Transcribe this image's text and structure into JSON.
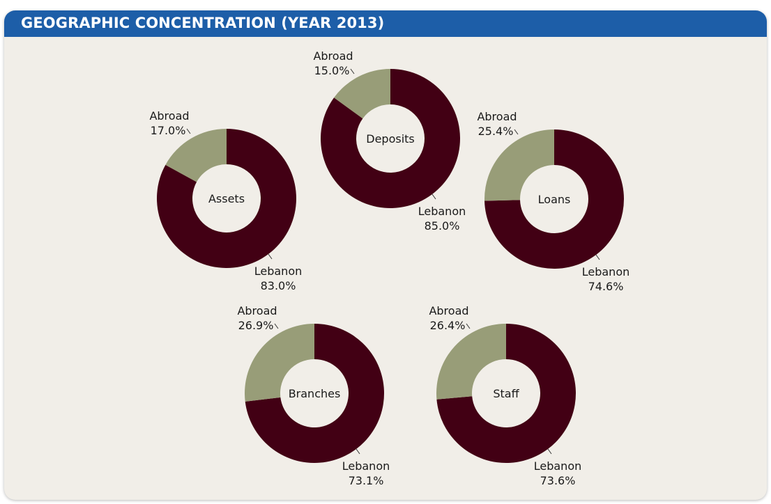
{
  "header": {
    "title": "GEOGRAPHIC CONCENTRATION (YEAR 2013)"
  },
  "colors": {
    "lebanon": "#420014",
    "abroad": "#989d78",
    "hole": "#f1eee8",
    "header": "#1d5ea8"
  },
  "chart_data": [
    {
      "type": "pie",
      "title": "Assets",
      "categories": [
        "Lebanon",
        "Abroad"
      ],
      "values": [
        83.0,
        17.0
      ],
      "labels": [
        "83.0%",
        "17.0%"
      ]
    },
    {
      "type": "pie",
      "title": "Deposits",
      "categories": [
        "Lebanon",
        "Abroad"
      ],
      "values": [
        85.0,
        15.0
      ],
      "labels": [
        "85.0%",
        "15.0%"
      ]
    },
    {
      "type": "pie",
      "title": "Loans",
      "categories": [
        "Lebanon",
        "Abroad"
      ],
      "values": [
        74.6,
        25.4
      ],
      "labels": [
        "74.6%",
        "25.4%"
      ]
    },
    {
      "type": "pie",
      "title": "Branches",
      "categories": [
        "Lebanon",
        "Abroad"
      ],
      "values": [
        73.1,
        26.9
      ],
      "labels": [
        "73.1%",
        "26.9%"
      ]
    },
    {
      "type": "pie",
      "title": "Staff",
      "categories": [
        "Lebanon",
        "Abroad"
      ],
      "values": [
        73.6,
        26.4
      ],
      "labels": [
        "73.6%",
        "26.4%"
      ]
    }
  ]
}
